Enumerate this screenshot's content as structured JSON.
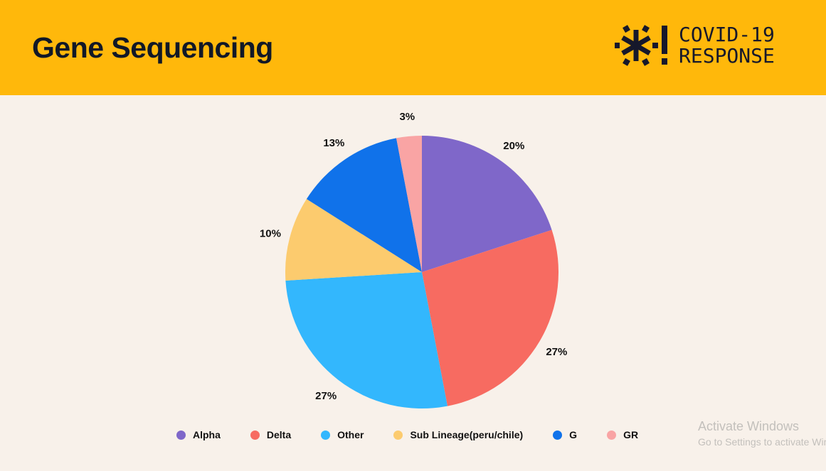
{
  "header": {
    "title": "Gene Sequencing",
    "logo_line1": "COVID-19",
    "logo_line2": "RESPONSE",
    "bg_color": "#ffb80b"
  },
  "chart_data": {
    "type": "pie",
    "categories": [
      "Alpha",
      "Delta",
      "Other",
      "Sub Lineage(peru/chile)",
      "G",
      "GR"
    ],
    "values": [
      20,
      27,
      27,
      10,
      13,
      3
    ],
    "labels": [
      "20%",
      "27%",
      "27%",
      "10%",
      "13%",
      "3%"
    ],
    "colors": [
      "#7f67c9",
      "#f76b61",
      "#33b7fd",
      "#fccb6e",
      "#1072ea",
      "#f9a4a4"
    ],
    "legend": "bottom",
    "start": "top, clockwise"
  },
  "watermark": {
    "line1": "Activate Windows",
    "line2": "Go to Settings to activate Windows."
  }
}
